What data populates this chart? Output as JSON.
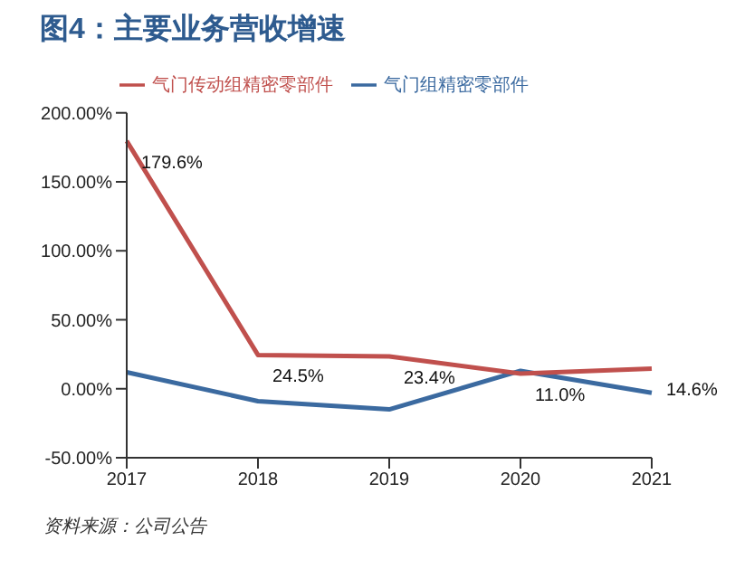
{
  "chart_data": {
    "type": "line",
    "title": "图4：主要业务营收增速",
    "categories": [
      "2017",
      "2018",
      "2019",
      "2020",
      "2021"
    ],
    "series": [
      {
        "name": "气门组精密零部件",
        "color": "#3b6aa0",
        "values": [
          12,
          -9,
          -15,
          13,
          -3
        ]
      },
      {
        "name": "气门传动组精密零部件",
        "color": "#c0504d",
        "values": [
          179.6,
          24.5,
          23.4,
          11.0,
          14.6
        ],
        "value_labels": [
          "179.6%",
          "24.5%",
          "23.4%",
          "11.0%",
          "14.6%"
        ]
      }
    ],
    "ylim": [
      -50,
      200
    ],
    "yticks": [
      {
        "value": -50,
        "label": "-50.00%"
      },
      {
        "value": 0,
        "label": "0.00%"
      },
      {
        "value": 50,
        "label": "50.00%"
      },
      {
        "value": 100,
        "label": "100.00%"
      },
      {
        "value": 150,
        "label": "150.00%"
      },
      {
        "value": 200,
        "label": "200.00%"
      }
    ],
    "grid": false,
    "legend": "top",
    "marker": "none",
    "line_style": "solid",
    "annotations": [
      "资料来源：公司公告"
    ]
  }
}
